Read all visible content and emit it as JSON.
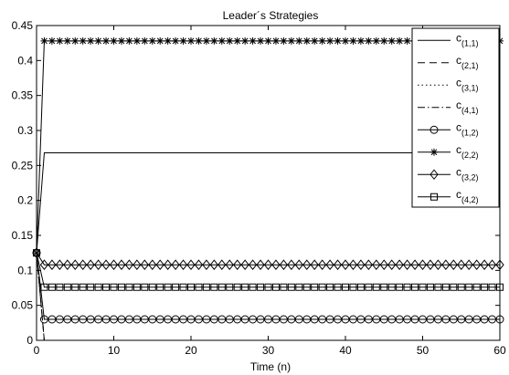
{
  "chart_data": {
    "type": "line",
    "title": "Leader´s Strategies",
    "xlabel": "Time (n)",
    "ylabel": "",
    "xlim": [
      0,
      60
    ],
    "ylim": [
      0,
      0.45
    ],
    "xticks": [
      "0",
      "10",
      "20",
      "30",
      "40",
      "50",
      "60"
    ],
    "yticks": [
      "0",
      "0.05",
      "0.1",
      "0.15",
      "0.2",
      "0.25",
      "0.3",
      "0.35",
      "0.4",
      "0.45"
    ],
    "grid": false,
    "legend_position": "top-right",
    "initial_value": 0.125,
    "x_steps": [
      0,
      1,
      60
    ],
    "series": [
      {
        "name": "c",
        "sub": "(1,1)",
        "line": "solid",
        "marker": "none",
        "values": [
          0.125,
          0.268,
          0.268
        ]
      },
      {
        "name": "c",
        "sub": "(2,1)",
        "line": "dashed",
        "marker": "none",
        "values": [
          0.125,
          0.0,
          0.0
        ]
      },
      {
        "name": "c",
        "sub": "(3,1)",
        "line": "dotted",
        "marker": "none",
        "values": [
          0.125,
          0.0,
          0.0
        ]
      },
      {
        "name": "c",
        "sub": "(4,1)",
        "line": "dashdot",
        "marker": "none",
        "values": [
          0.125,
          0.0,
          0.0
        ]
      },
      {
        "name": "c",
        "sub": "(1,2)",
        "line": "solid",
        "marker": "circle",
        "values": [
          0.125,
          0.03,
          0.03
        ]
      },
      {
        "name": "c",
        "sub": "(2,2)",
        "line": "solid",
        "marker": "star",
        "values": [
          0.125,
          0.428,
          0.428
        ]
      },
      {
        "name": "c",
        "sub": "(3,2)",
        "line": "solid",
        "marker": "diamond",
        "values": [
          0.125,
          0.108,
          0.108
        ]
      },
      {
        "name": "c",
        "sub": "(4,2)",
        "line": "solid",
        "marker": "square",
        "values": [
          0.125,
          0.076,
          0.076
        ]
      }
    ]
  }
}
